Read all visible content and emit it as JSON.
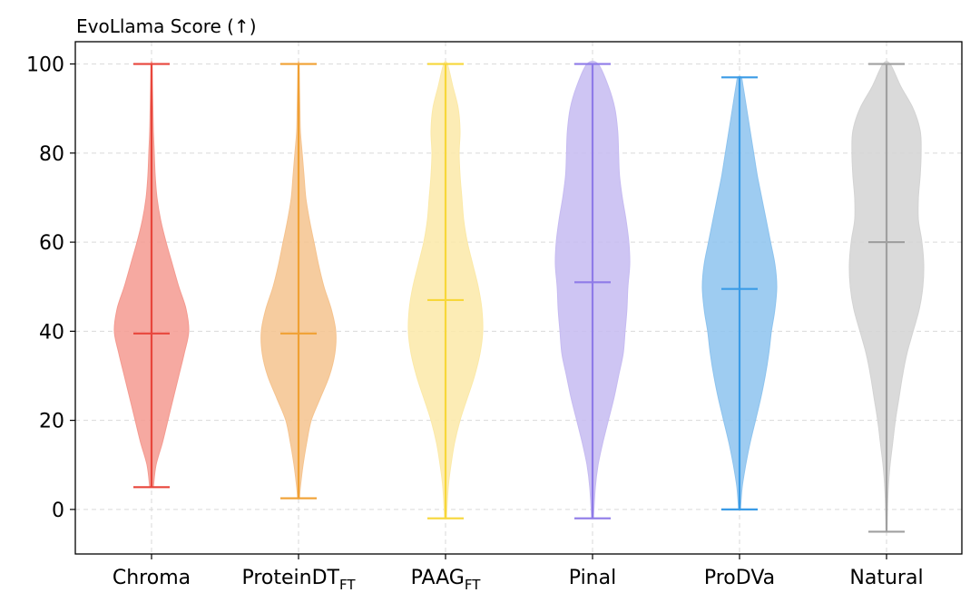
{
  "chart_data": {
    "type": "violin",
    "title": "EvoLlama Score (↑)",
    "xlabel": "",
    "ylabel": "",
    "ylim": [
      -10,
      105
    ],
    "yticks": [
      0,
      20,
      40,
      60,
      80,
      100
    ],
    "grid": true,
    "series": [
      {
        "name": "Chroma",
        "label_main": "Chroma",
        "label_sub": "",
        "color": "#e8463c",
        "fill": "#f49a90",
        "min": 5,
        "max": 100,
        "median": 39.5,
        "density": [
          [
            5,
            2
          ],
          [
            10,
            5
          ],
          [
            15,
            12
          ],
          [
            20,
            18
          ],
          [
            25,
            24
          ],
          [
            30,
            30
          ],
          [
            35,
            36
          ],
          [
            40,
            41
          ],
          [
            45,
            38
          ],
          [
            50,
            30
          ],
          [
            55,
            23
          ],
          [
            60,
            16
          ],
          [
            65,
            10
          ],
          [
            70,
            6
          ],
          [
            75,
            4
          ],
          [
            80,
            3
          ],
          [
            85,
            2
          ],
          [
            90,
            1.5
          ],
          [
            95,
            1
          ],
          [
            100,
            0.5
          ]
        ]
      },
      {
        "name": "ProteinDTFT",
        "label_main": "ProteinDT",
        "label_sub": "FT",
        "color": "#f0a033",
        "fill": "#f5c38e",
        "min": 2.5,
        "max": 100,
        "median": 39.5,
        "density": [
          [
            2.5,
            1
          ],
          [
            5,
            2
          ],
          [
            10,
            5
          ],
          [
            15,
            9
          ],
          [
            20,
            14
          ],
          [
            25,
            24
          ],
          [
            30,
            34
          ],
          [
            35,
            40
          ],
          [
            40,
            41
          ],
          [
            45,
            36
          ],
          [
            50,
            28
          ],
          [
            55,
            22
          ],
          [
            60,
            17
          ],
          [
            65,
            12
          ],
          [
            70,
            8
          ],
          [
            75,
            6
          ],
          [
            80,
            4
          ],
          [
            85,
            2
          ],
          [
            90,
            1.5
          ],
          [
            95,
            1
          ],
          [
            100,
            0.5
          ]
        ]
      },
      {
        "name": "PAAGFT",
        "label_main": "PAAG",
        "label_sub": "FT",
        "color": "#f7d73a",
        "fill": "#fbe9a8",
        "min": -2,
        "max": 100,
        "median": 47,
        "density": [
          [
            -2,
            1
          ],
          [
            5,
            3
          ],
          [
            10,
            6
          ],
          [
            15,
            10
          ],
          [
            20,
            16
          ],
          [
            25,
            24
          ],
          [
            30,
            32
          ],
          [
            35,
            38
          ],
          [
            40,
            41
          ],
          [
            45,
            40
          ],
          [
            50,
            36
          ],
          [
            55,
            30
          ],
          [
            60,
            24
          ],
          [
            65,
            20
          ],
          [
            70,
            18
          ],
          [
            75,
            16
          ],
          [
            80,
            15
          ],
          [
            85,
            16
          ],
          [
            90,
            14
          ],
          [
            95,
            8
          ],
          [
            100,
            2
          ]
        ]
      },
      {
        "name": "Pinal",
        "label_main": "Pinal",
        "label_sub": "",
        "color": "#8f7be8",
        "fill": "#c6bbf1",
        "min": -2,
        "max": 100,
        "median": 51,
        "density": [
          [
            -2,
            1
          ],
          [
            5,
            3
          ],
          [
            10,
            6
          ],
          [
            15,
            11
          ],
          [
            20,
            17
          ],
          [
            25,
            23
          ],
          [
            30,
            28
          ],
          [
            35,
            33
          ],
          [
            40,
            35
          ],
          [
            45,
            37
          ],
          [
            50,
            38
          ],
          [
            55,
            40
          ],
          [
            60,
            39
          ],
          [
            65,
            36
          ],
          [
            70,
            32
          ],
          [
            75,
            29
          ],
          [
            80,
            28
          ],
          [
            85,
            27
          ],
          [
            90,
            24
          ],
          [
            95,
            17
          ],
          [
            100,
            6
          ]
        ]
      },
      {
        "name": "ProDVa",
        "label_main": "ProDVa",
        "label_sub": "",
        "color": "#3a9be6",
        "fill": "#8dc3ee",
        "min": 0,
        "max": 97,
        "median": 49.5,
        "density": [
          [
            0,
            1
          ],
          [
            5,
            3
          ],
          [
            10,
            7
          ],
          [
            15,
            12
          ],
          [
            20,
            18
          ],
          [
            25,
            24
          ],
          [
            30,
            29
          ],
          [
            35,
            33
          ],
          [
            40,
            36
          ],
          [
            45,
            40
          ],
          [
            50,
            42
          ],
          [
            55,
            40
          ],
          [
            60,
            35
          ],
          [
            65,
            30
          ],
          [
            70,
            25
          ],
          [
            75,
            20
          ],
          [
            80,
            16
          ],
          [
            85,
            12
          ],
          [
            90,
            8
          ],
          [
            95,
            4
          ],
          [
            97,
            2
          ]
        ]
      },
      {
        "name": "Natural",
        "label_main": "Natural",
        "label_sub": "",
        "color": "#a0a0a0",
        "fill": "#d3d3d3",
        "min": -5,
        "max": 100,
        "median": 60,
        "density": [
          [
            -5,
            0.5
          ],
          [
            0,
            1
          ],
          [
            5,
            2
          ],
          [
            10,
            4
          ],
          [
            15,
            7
          ],
          [
            20,
            10
          ],
          [
            25,
            14
          ],
          [
            30,
            18
          ],
          [
            35,
            23
          ],
          [
            40,
            30
          ],
          [
            45,
            37
          ],
          [
            50,
            41
          ],
          [
            55,
            42
          ],
          [
            60,
            40
          ],
          [
            65,
            36
          ],
          [
            70,
            36
          ],
          [
            75,
            38
          ],
          [
            80,
            39
          ],
          [
            85,
            38
          ],
          [
            90,
            30
          ],
          [
            95,
            16
          ],
          [
            100,
            4
          ]
        ]
      }
    ]
  }
}
